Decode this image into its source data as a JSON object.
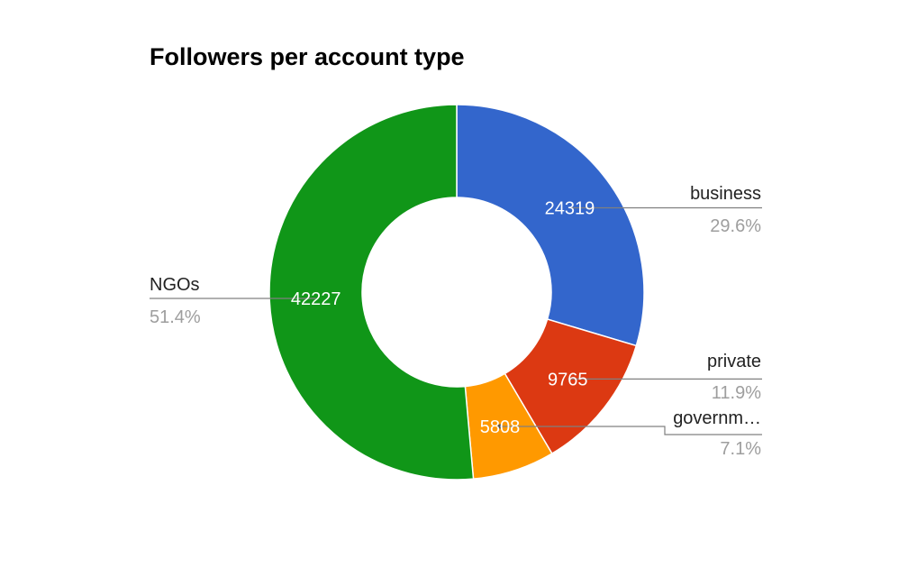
{
  "chart_data": {
    "type": "pie",
    "title": "Followers per account type",
    "donut": true,
    "legend_placement": "labels-with-leader-lines",
    "slices": [
      {
        "label": "business",
        "display_label": "business",
        "value": 24319,
        "percent": "29.6%",
        "color": "#3366cc"
      },
      {
        "label": "private",
        "display_label": "private",
        "value": 9765,
        "percent": "11.9%",
        "color": "#dc3912"
      },
      {
        "label": "government",
        "display_label": "governm…",
        "value": 5808,
        "percent": "7.1%",
        "color": "#ff9900"
      },
      {
        "label": "NGOs",
        "display_label": "NGOs",
        "value": 42227,
        "percent": "51.4%",
        "color": "#109618"
      }
    ]
  }
}
